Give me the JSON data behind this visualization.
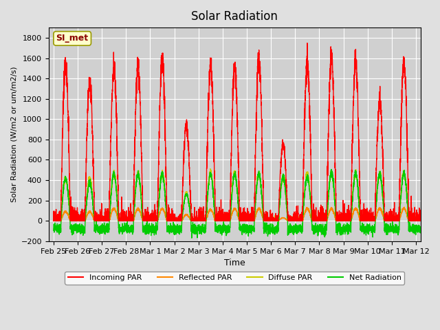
{
  "title": "Solar Radiation",
  "xlabel": "Time",
  "ylabel": "Solar Radiation (W/m2 or um/m2/s)",
  "ylim": [
    -200,
    1900
  ],
  "yticks": [
    -200,
    0,
    200,
    400,
    600,
    800,
    1000,
    1200,
    1400,
    1600,
    1800
  ],
  "fig_bg_color": "#e0e0e0",
  "plot_bg_color": "#d0d0d0",
  "legend_label": "SI_met",
  "series_colors": {
    "incoming": "#ff0000",
    "reflected": "#ff8800",
    "diffuse": "#cccc00",
    "net": "#00cc00"
  },
  "series_names": [
    "Incoming PAR",
    "Reflected PAR",
    "Diffuse PAR",
    "Net Radiation"
  ],
  "n_days": 16,
  "xtick_labels": [
    "Feb 25",
    "Feb 26",
    "Feb 27",
    "Feb 28",
    "Mar 1",
    "Mar 2",
    "Mar 3",
    "Mar 4",
    "Mar 5",
    "Mar 6",
    "Mar 7",
    "Mar 8",
    "Mar 9",
    "Mar 10",
    "Mar 11",
    "Mar 12"
  ],
  "day_peaks_incoming": [
    1530,
    1350,
    1500,
    1520,
    1580,
    940,
    1540,
    1510,
    1580,
    750,
    1550,
    1610,
    1550,
    1180,
    1550,
    1550
  ],
  "day_peaks_reflected": [
    90,
    90,
    120,
    120,
    120,
    60,
    110,
    120,
    120,
    30,
    120,
    120,
    120,
    120,
    120,
    120
  ],
  "day_peaks_diffuse": [
    420,
    420,
    460,
    460,
    460,
    270,
    470,
    470,
    460,
    430,
    460,
    470,
    460,
    460,
    470,
    470
  ],
  "day_peaks_net": [
    420,
    370,
    460,
    460,
    460,
    260,
    460,
    460,
    460,
    430,
    430,
    470,
    460,
    460,
    460,
    460
  ],
  "night_net": -80,
  "line_width": 1.0
}
